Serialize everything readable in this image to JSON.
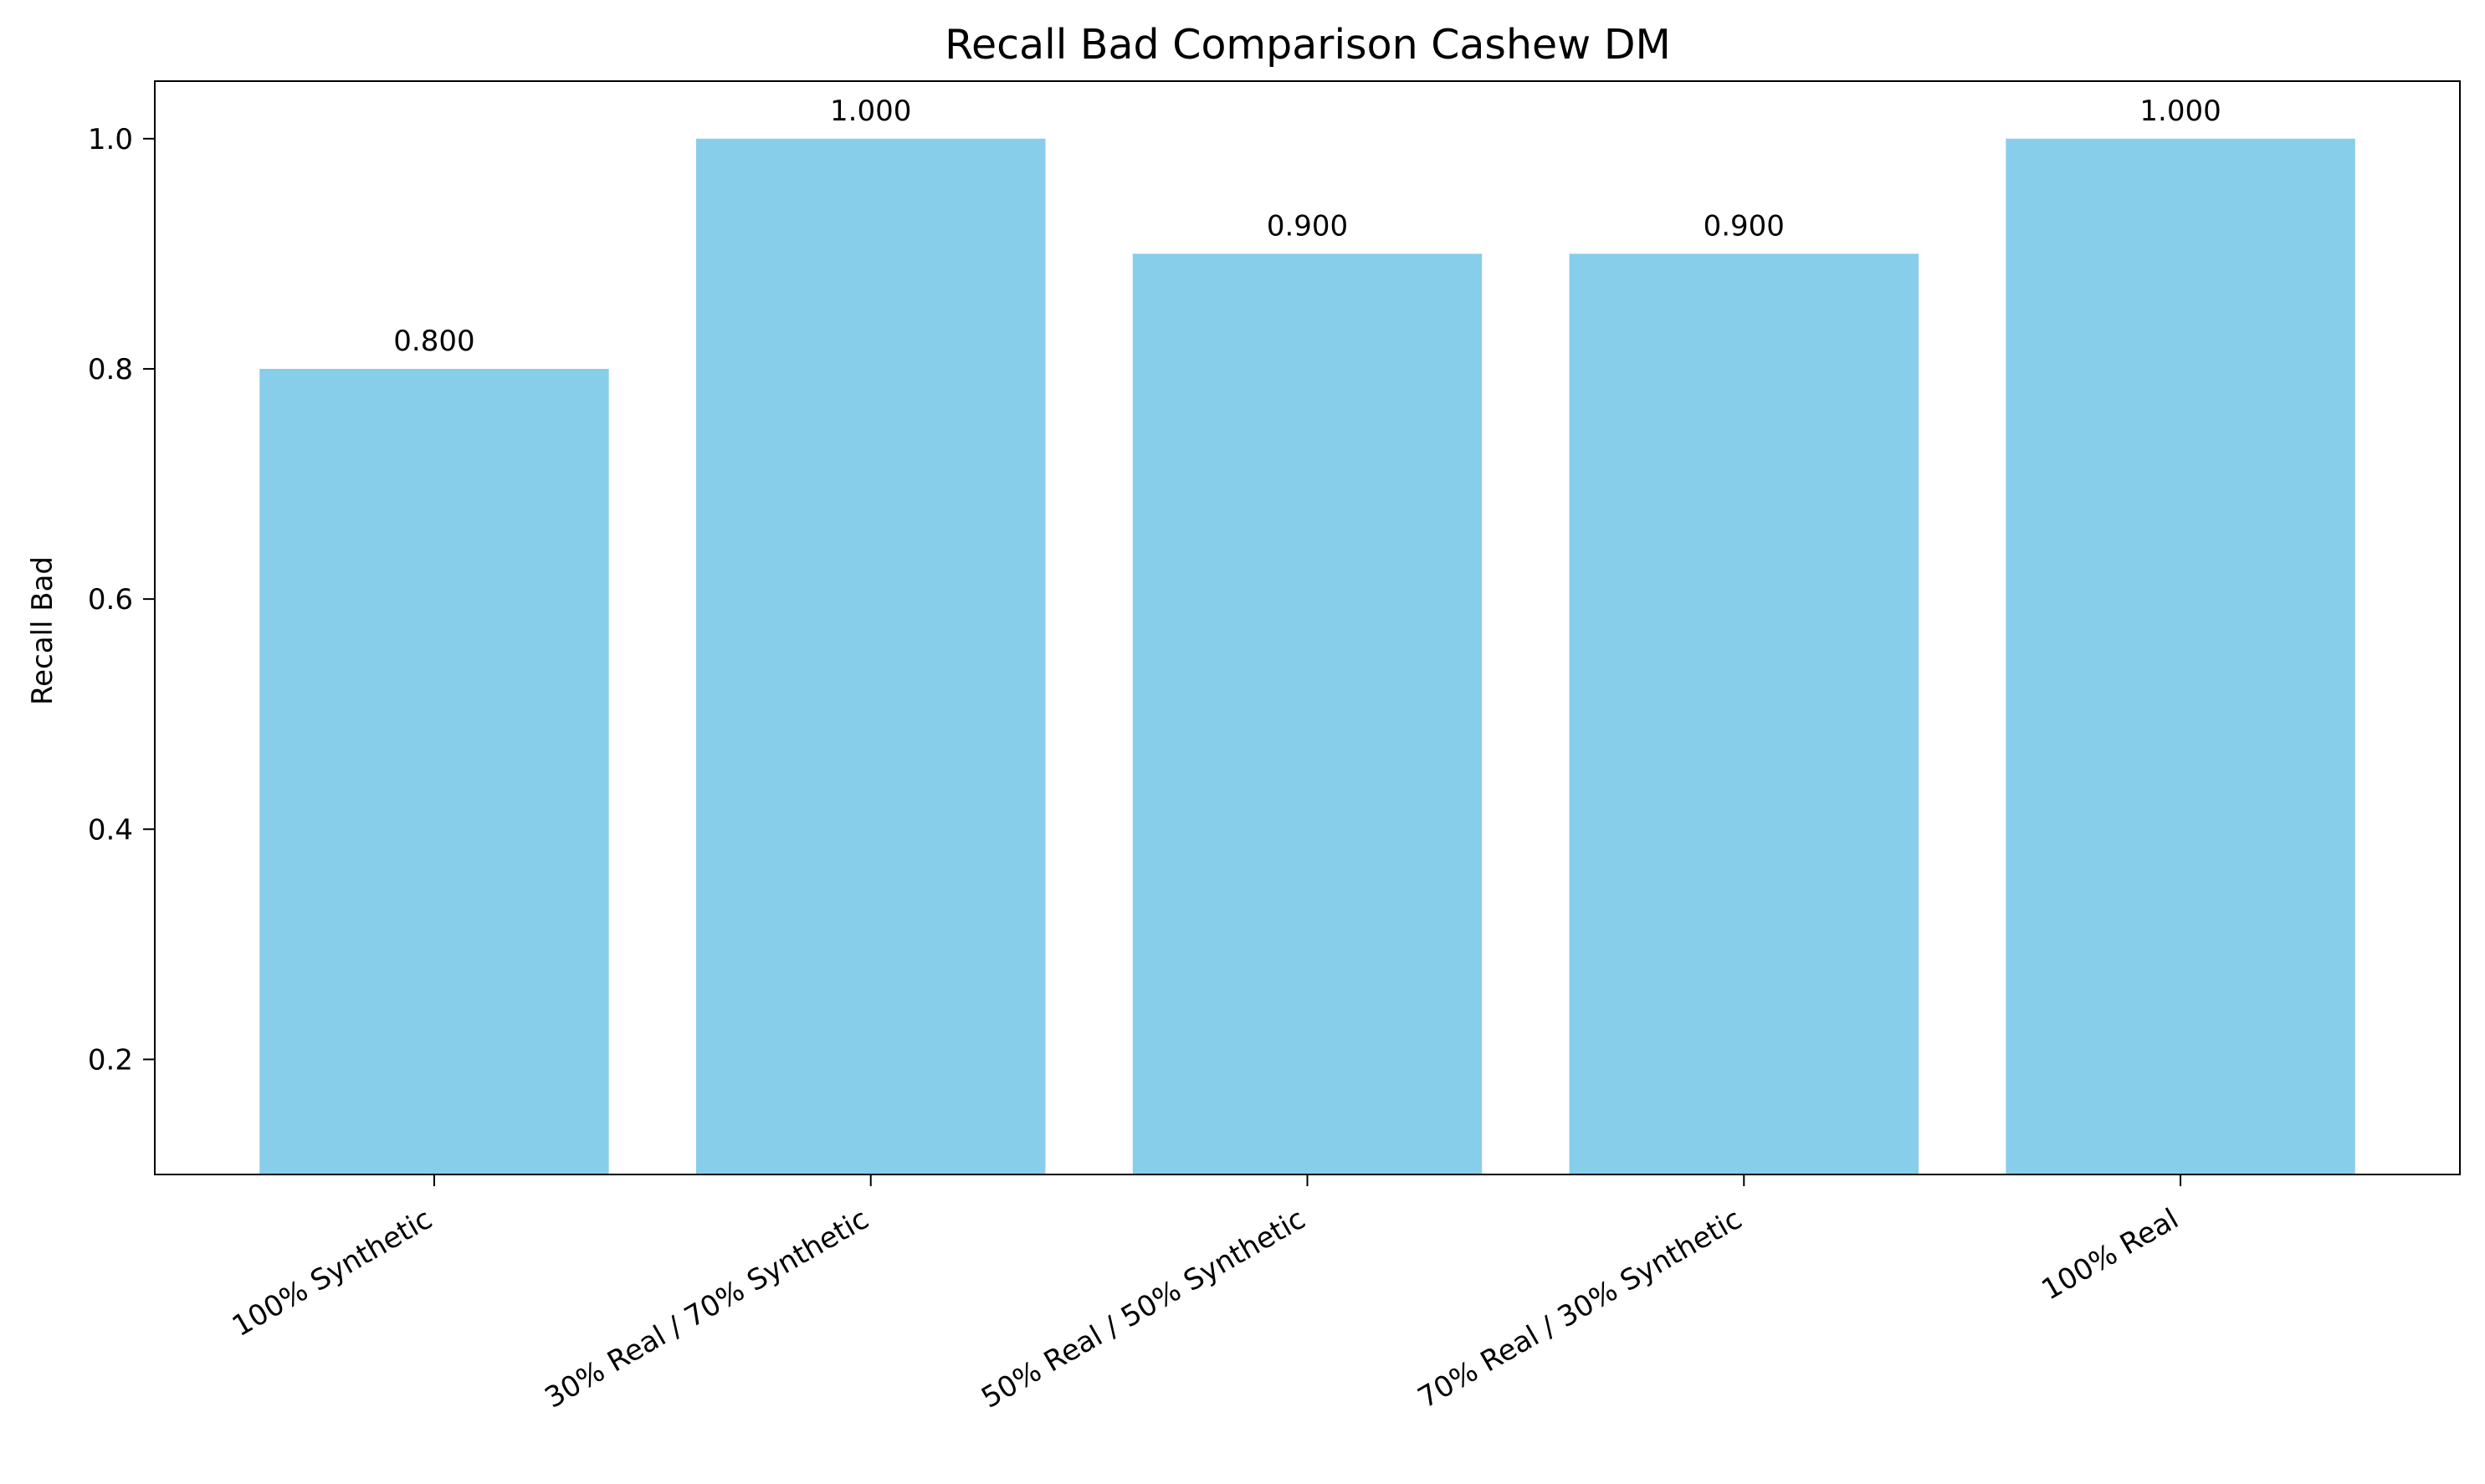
{
  "chart_data": {
    "type": "bar",
    "title": "Recall Bad Comparison Cashew DM",
    "xlabel": "",
    "ylabel": "Recall Bad",
    "categories": [
      "100% Synthetic",
      "30% Real / 70% Synthetic",
      "50% Real / 50% Synthetic",
      "70% Real / 30% Synthetic",
      "100% Real"
    ],
    "values": [
      0.8,
      1.0,
      0.9,
      0.9,
      1.0
    ],
    "value_labels": [
      "0.800",
      "1.000",
      "0.900",
      "0.900",
      "1.000"
    ],
    "ylim": [
      0.1,
      1.05
    ],
    "yticks": [
      0.2,
      0.4,
      0.6,
      0.8,
      1.0
    ],
    "ytick_labels": [
      "0.2",
      "0.4",
      "0.6",
      "0.8",
      "1.0"
    ],
    "grid": false,
    "legend": "none",
    "bar_color": "#87CEEB"
  }
}
